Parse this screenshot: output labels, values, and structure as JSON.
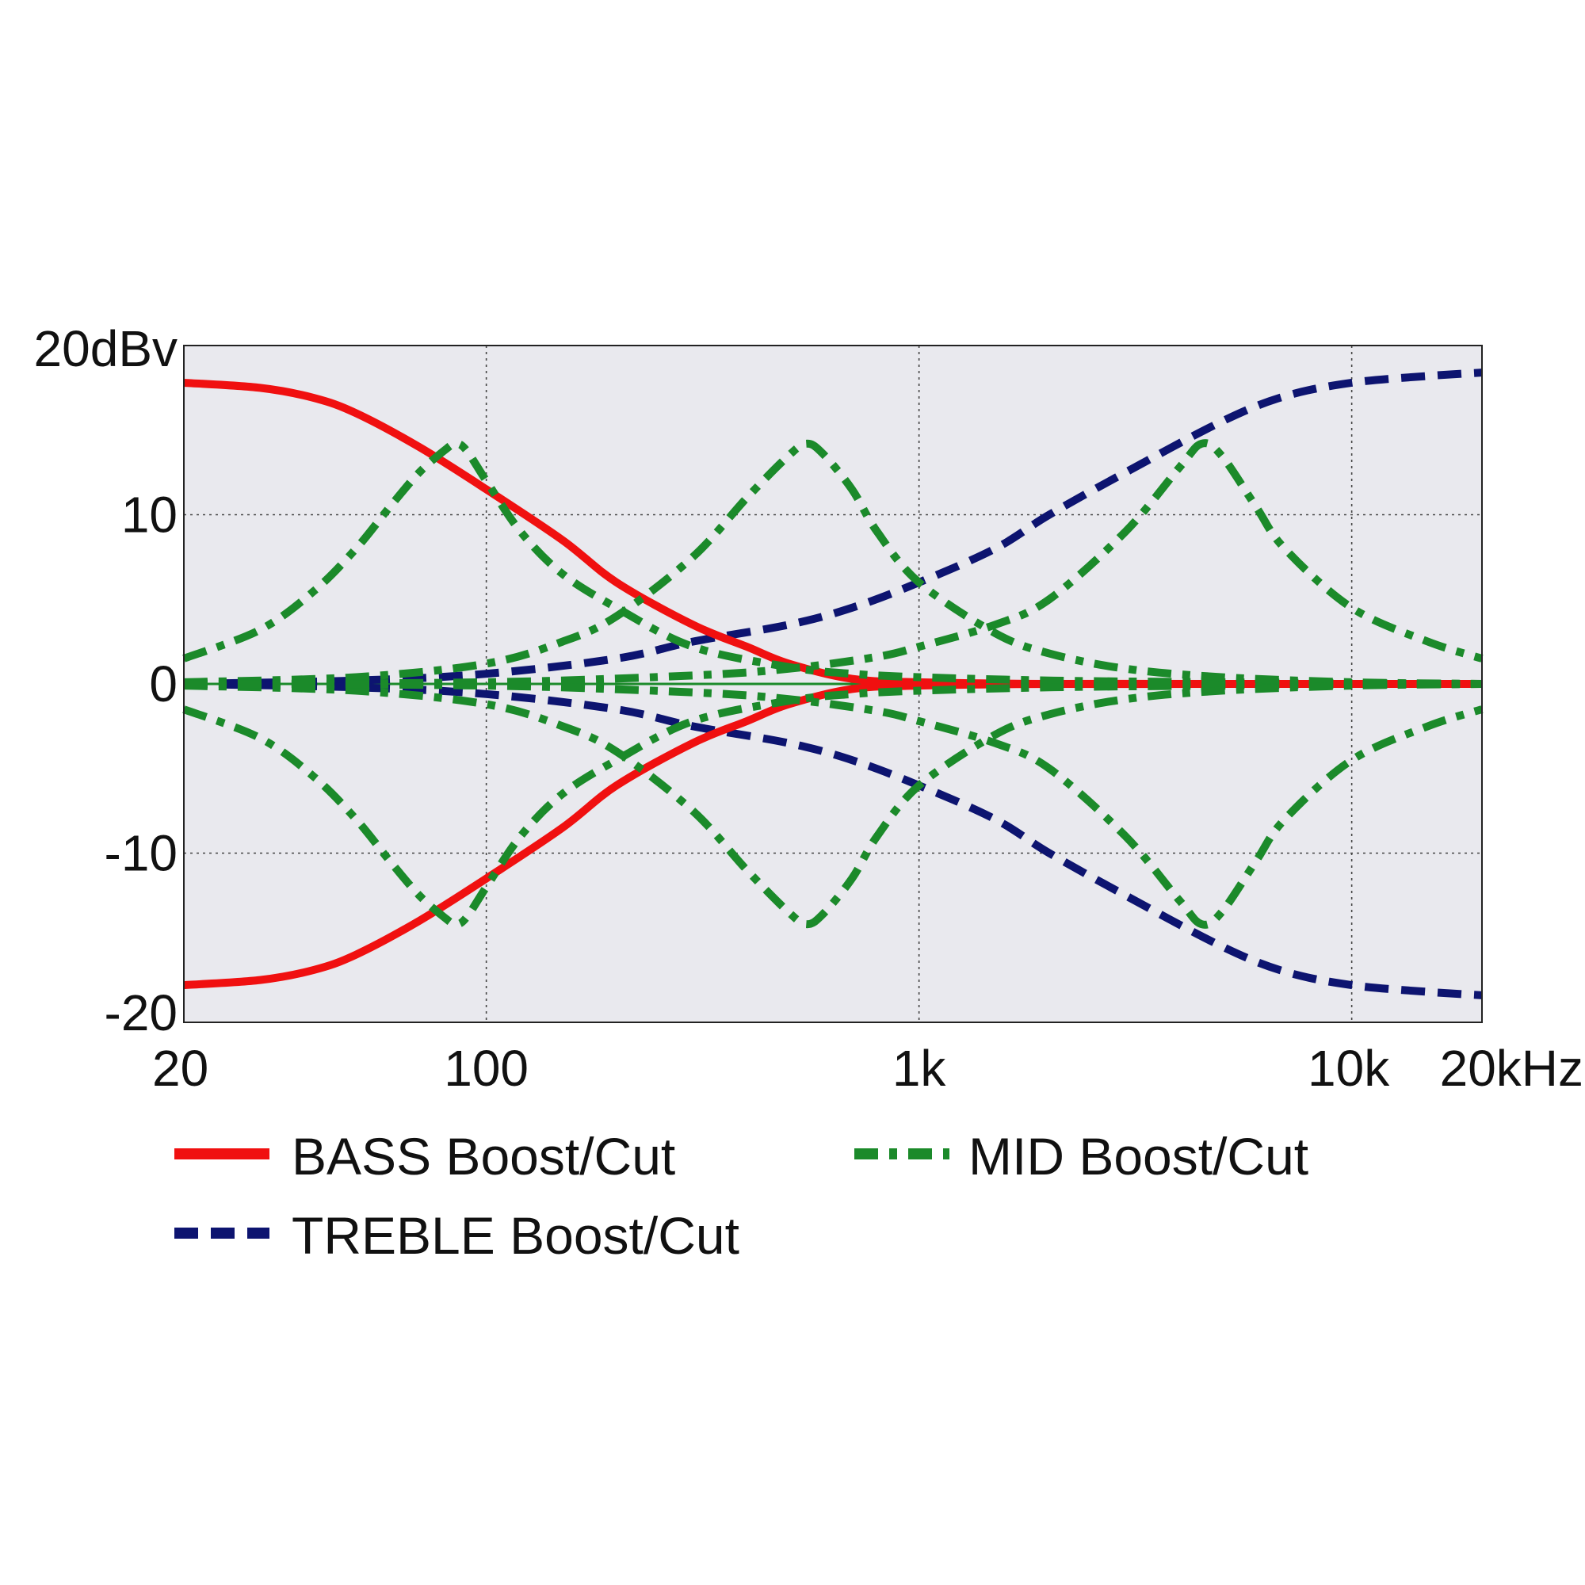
{
  "chart_data": {
    "type": "line",
    "x_scale": "log",
    "xlim": [
      20,
      20000
    ],
    "ylim": [
      -20,
      20
    ],
    "grid": true,
    "legend_position": "bottom",
    "colors": {
      "plot_background": "#e9e9ee",
      "bass": "#f01010",
      "treble": "#0d1470",
      "mid": "#1b8a2a",
      "grid": "#444444"
    },
    "x_ticks": [
      {
        "value": 20,
        "label": "20"
      },
      {
        "value": 100,
        "label": "100"
      },
      {
        "value": 1000,
        "label": "1k"
      },
      {
        "value": 10000,
        "label": "10k"
      },
      {
        "value": 20000,
        "label": "20kHz"
      }
    ],
    "y_ticks": [
      {
        "value": 20,
        "label": "20dBv"
      },
      {
        "value": 10,
        "label": "10"
      },
      {
        "value": 0,
        "label": "0"
      },
      {
        "value": -10,
        "label": "-10"
      },
      {
        "value": -20,
        "label": "-20"
      }
    ],
    "series": [
      {
        "name": "BASS Boost/Cut",
        "style": "solid",
        "color": "#f01010",
        "curves": [
          {
            "x": [
              20,
              30,
              40,
              50,
              70,
              100,
              150,
              200,
              300,
              400,
              500,
              700,
              1000,
              2000,
              5000,
              10000,
              20000
            ],
            "y": [
              17.8,
              17.5,
              16.9,
              16.0,
              14.0,
              11.5,
              8.5,
              6.0,
              3.5,
              2.2,
              1.2,
              0.3,
              0.1,
              0,
              0,
              0,
              0
            ]
          },
          {
            "x": [
              20,
              30,
              40,
              50,
              70,
              100,
              150,
              200,
              300,
              400,
              500,
              700,
              1000,
              2000,
              5000,
              10000,
              20000
            ],
            "y": [
              -17.8,
              -17.5,
              -16.9,
              -16.0,
              -14.0,
              -11.5,
              -8.5,
              -6.0,
              -3.5,
              -2.2,
              -1.2,
              -0.3,
              -0.1,
              0,
              0,
              0,
              0
            ]
          }
        ]
      },
      {
        "name": "TREBLE Boost/Cut",
        "style": "dashed",
        "color": "#0d1470",
        "curves": [
          {
            "x": [
              20,
              50,
              100,
              200,
              300,
              500,
              700,
              1000,
              1500,
              2000,
              3000,
              5000,
              7000,
              10000,
              15000,
              20000
            ],
            "y": [
              0,
              0.2,
              0.6,
              1.5,
              2.5,
              3.5,
              4.5,
              6.0,
              8.0,
              10.0,
              12.5,
              15.5,
              17.0,
              17.8,
              18.2,
              18.4
            ]
          },
          {
            "x": [
              20,
              50,
              100,
              200,
              300,
              500,
              700,
              1000,
              1500,
              2000,
              3000,
              5000,
              7000,
              10000,
              15000,
              20000
            ],
            "y": [
              0,
              -0.2,
              -0.6,
              -1.5,
              -2.5,
              -3.5,
              -4.5,
              -6.0,
              -8.0,
              -10.0,
              -12.5,
              -15.5,
              -17.0,
              -17.8,
              -18.2,
              -18.4
            ]
          }
        ]
      },
      {
        "name": "MID Boost/Cut",
        "style": "dashdot",
        "color": "#1b8a2a",
        "curves": [
          {
            "x": [
              20,
              30,
              40,
              50,
              60,
              70,
              80,
              85,
              90,
              100,
              120,
              150,
              200,
              300,
              500,
              700,
              1000,
              2000,
              5000,
              20000
            ],
            "y": [
              1.5,
              3.2,
              5.5,
              8.0,
              10.5,
              12.5,
              13.8,
              14.2,
              13.8,
              12.0,
              9.0,
              6.5,
              4.5,
              2.2,
              1.0,
              0.6,
              0.4,
              0.2,
              0.1,
              0
            ]
          },
          {
            "x": [
              20,
              30,
              40,
              50,
              60,
              70,
              80,
              85,
              90,
              100,
              120,
              150,
              200,
              300,
              500,
              700,
              1000,
              2000,
              5000,
              20000
            ],
            "y": [
              -1.5,
              -3.2,
              -5.5,
              -8.0,
              -10.5,
              -12.5,
              -13.8,
              -14.2,
              -13.8,
              -12.0,
              -9.0,
              -6.5,
              -4.5,
              -2.2,
              -1.0,
              -0.6,
              -0.4,
              -0.2,
              -0.1,
              0
            ]
          },
          {
            "x": [
              20,
              50,
              100,
              150,
              200,
              300,
              400,
              500,
              550,
              600,
              700,
              800,
              1000,
              1500,
              2000,
              3000,
              5000,
              10000,
              20000
            ],
            "y": [
              0.1,
              0.4,
              1.2,
              2.5,
              4.0,
              7.5,
              11.0,
              13.5,
              14.2,
              13.6,
              11.5,
              9.0,
              6.0,
              3.0,
              1.8,
              0.9,
              0.4,
              0.1,
              0
            ]
          },
          {
            "x": [
              20,
              50,
              100,
              150,
              200,
              300,
              400,
              500,
              550,
              600,
              700,
              800,
              1000,
              1500,
              2000,
              3000,
              5000,
              10000,
              20000
            ],
            "y": [
              -0.1,
              -0.4,
              -1.2,
              -2.5,
              -4.0,
              -7.5,
              -11.0,
              -13.5,
              -14.2,
              -13.6,
              -11.5,
              -9.0,
              -6.0,
              -3.0,
              -1.8,
              -0.9,
              -0.4,
              -0.1,
              0
            ]
          },
          {
            "x": [
              20,
              100,
              300,
              500,
              800,
              1000,
              1500,
              2000,
              3000,
              4000,
              4500,
              5000,
              6000,
              7000,
              10000,
              15000,
              20000
            ],
            "y": [
              0,
              0.1,
              0.5,
              0.9,
              1.6,
              2.2,
              3.5,
              5.0,
              9.0,
              12.8,
              14.2,
              13.5,
              10.5,
              8.0,
              4.5,
              2.5,
              1.5
            ]
          },
          {
            "x": [
              20,
              100,
              300,
              500,
              800,
              1000,
              1500,
              2000,
              3000,
              4000,
              4500,
              5000,
              6000,
              7000,
              10000,
              15000,
              20000
            ],
            "y": [
              0,
              -0.1,
              -0.5,
              -0.9,
              -1.6,
              -2.2,
              -3.5,
              -5.0,
              -9.0,
              -12.8,
              -14.2,
              -13.5,
              -10.5,
              -8.0,
              -4.5,
              -2.5,
              -1.5
            ]
          }
        ]
      }
    ]
  }
}
